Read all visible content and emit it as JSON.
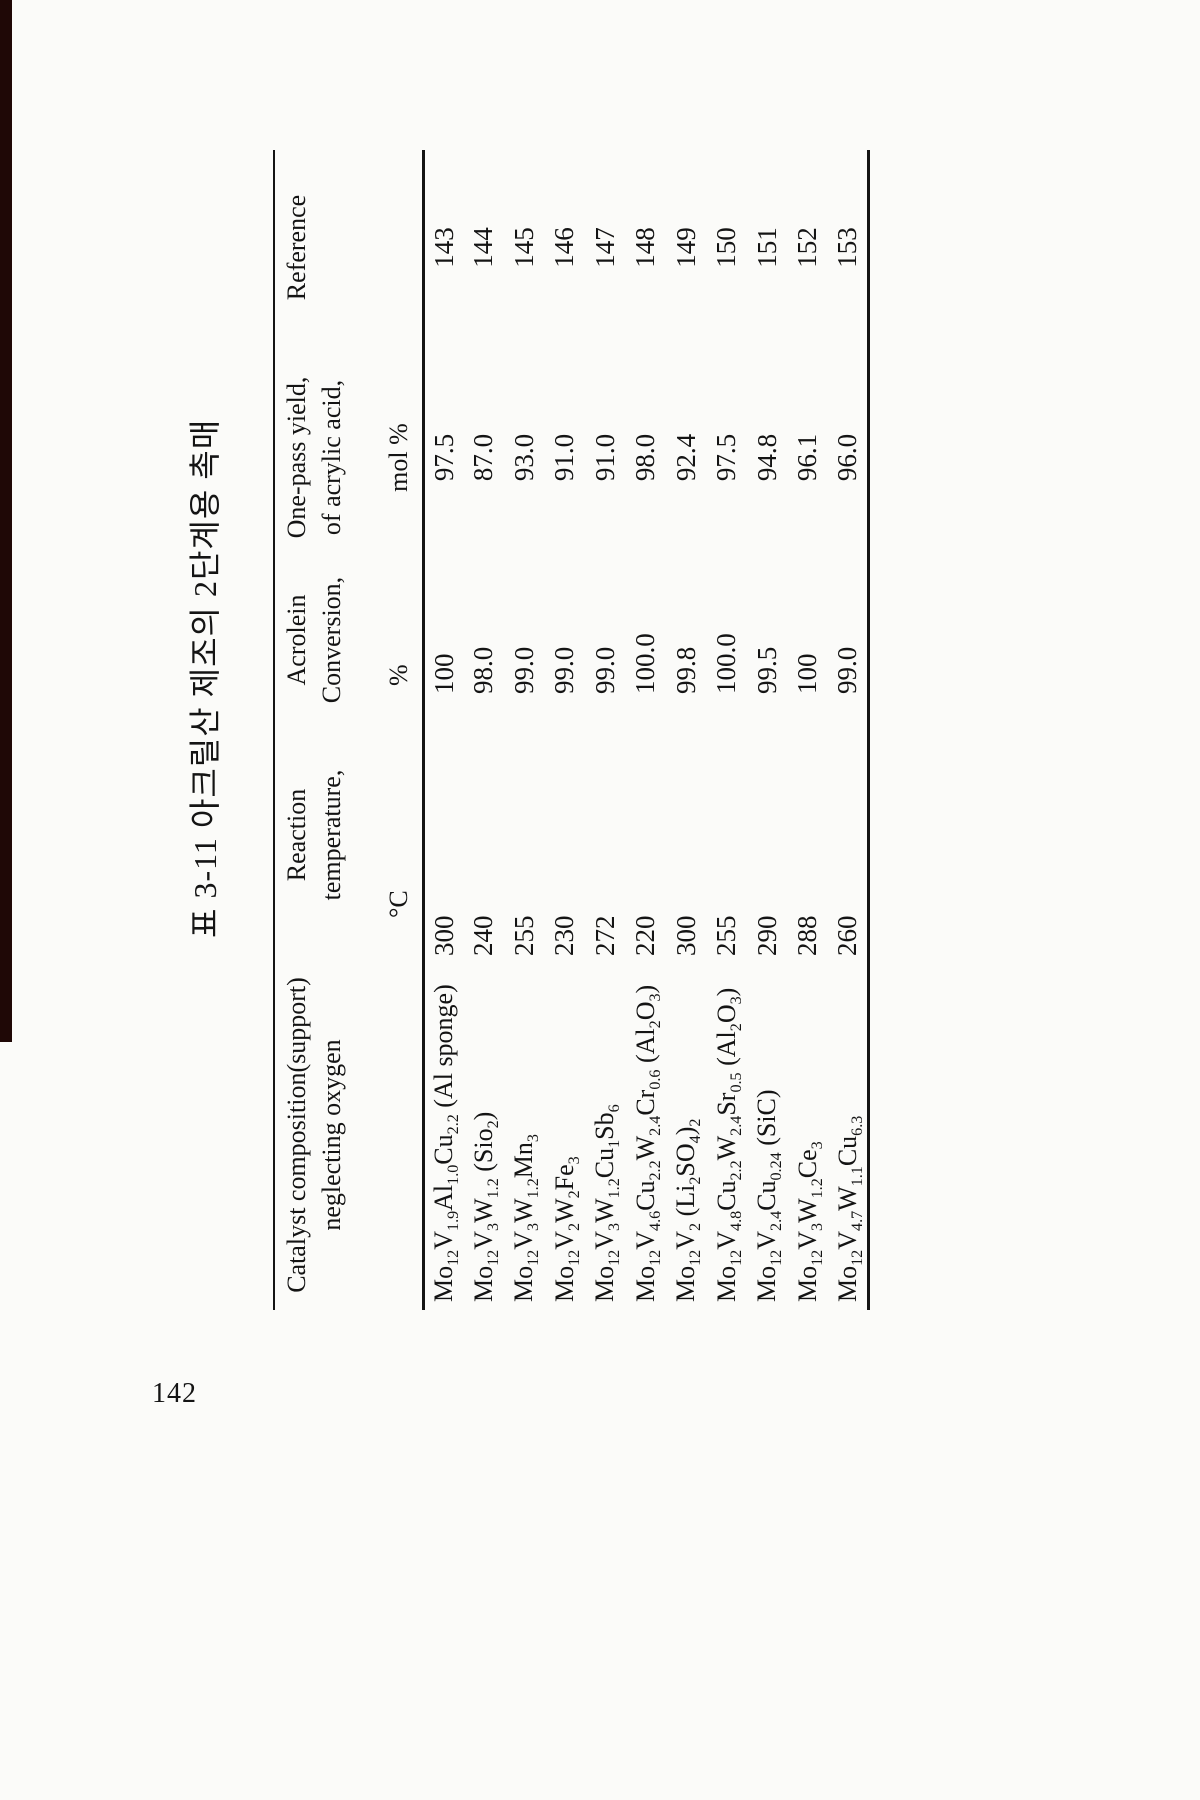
{
  "page": {
    "number": "142",
    "title": "표 3-11  아크릴산 제조의 2단계용 촉매"
  },
  "colors": {
    "ink": "#141414",
    "paper": "#fbfbf9",
    "artifact": "#1f0806"
  },
  "table": {
    "columns": [
      {
        "key": "catalyst",
        "header_lines": [
          "Catalyst composition(support)",
          "neglecting oxygen"
        ],
        "unit": ""
      },
      {
        "key": "temperature",
        "header_lines": [
          "Reaction",
          "temperature,"
        ],
        "unit": "°C"
      },
      {
        "key": "conversion",
        "header_lines": [
          "Acrolein",
          "Conversion,"
        ],
        "unit": "%"
      },
      {
        "key": "yield",
        "header_lines": [
          "One-pass yield,",
          "of acrylic acid,"
        ],
        "unit": "mol %"
      },
      {
        "key": "reference",
        "header_lines": [
          "Reference"
        ],
        "unit": ""
      }
    ],
    "rows": [
      {
        "catalyst": "Mo_{12}V_{1.9}Al_{1.0}Cu_{2.2} (Al sponge)",
        "temperature": "300",
        "conversion": "100",
        "yield": "97.5",
        "reference": "143"
      },
      {
        "catalyst": "Mo_{12}V_{3}W_{1.2} (Sio_{2})",
        "temperature": "240",
        "conversion": "98.0",
        "yield": "87.0",
        "reference": "144"
      },
      {
        "catalyst": "Mo_{12}V_{3}W_{1.2}Mn_{3}",
        "temperature": "255",
        "conversion": "99.0",
        "yield": "93.0",
        "reference": "145"
      },
      {
        "catalyst": "Mo_{12}V_{2}W_{2}Fe_{3}",
        "temperature": "230",
        "conversion": "99.0",
        "yield": "91.0",
        "reference": "146"
      },
      {
        "catalyst": "Mo_{12}V_{3}W_{1.2}Cu_{1}Sb_{6}",
        "temperature": "272",
        "conversion": "99.0",
        "yield": "91.0",
        "reference": "147"
      },
      {
        "catalyst": "Mo_{12}V_{4.6}Cu_{2.2}W_{2.4}Cr_{0.6} (Al_{2}O_{3})",
        "temperature": "220",
        "conversion": "100.0",
        "yield": "98.0",
        "reference": "148"
      },
      {
        "catalyst": "Mo_{12}V_{2} (Li_{2}SO_{4})_{2}",
        "temperature": "300",
        "conversion": "99.8",
        "yield": "92.4",
        "reference": "149"
      },
      {
        "catalyst": "Mo_{12}V_{4.8}Cu_{2.2}W_{2.4}Sr_{0.5} (Al_{2}O_{3})",
        "temperature": "255",
        "conversion": "100.0",
        "yield": "97.5",
        "reference": "150"
      },
      {
        "catalyst": "Mo_{12}V_{2.4}Cu_{0.24} (SiC)",
        "temperature": "290",
        "conversion": "99.5",
        "yield": "94.8",
        "reference": "151"
      },
      {
        "catalyst": "Mo_{12}V_{3}W_{1.2}Ce_{3}",
        "temperature": "288",
        "conversion": "100",
        "yield": "96.1",
        "reference": "152"
      },
      {
        "catalyst": "Mo_{12}V_{4.7}W_{1.1}Cu_{6.3}",
        "temperature": "260",
        "conversion": "99.0",
        "yield": "96.0",
        "reference": "153"
      }
    ]
  }
}
